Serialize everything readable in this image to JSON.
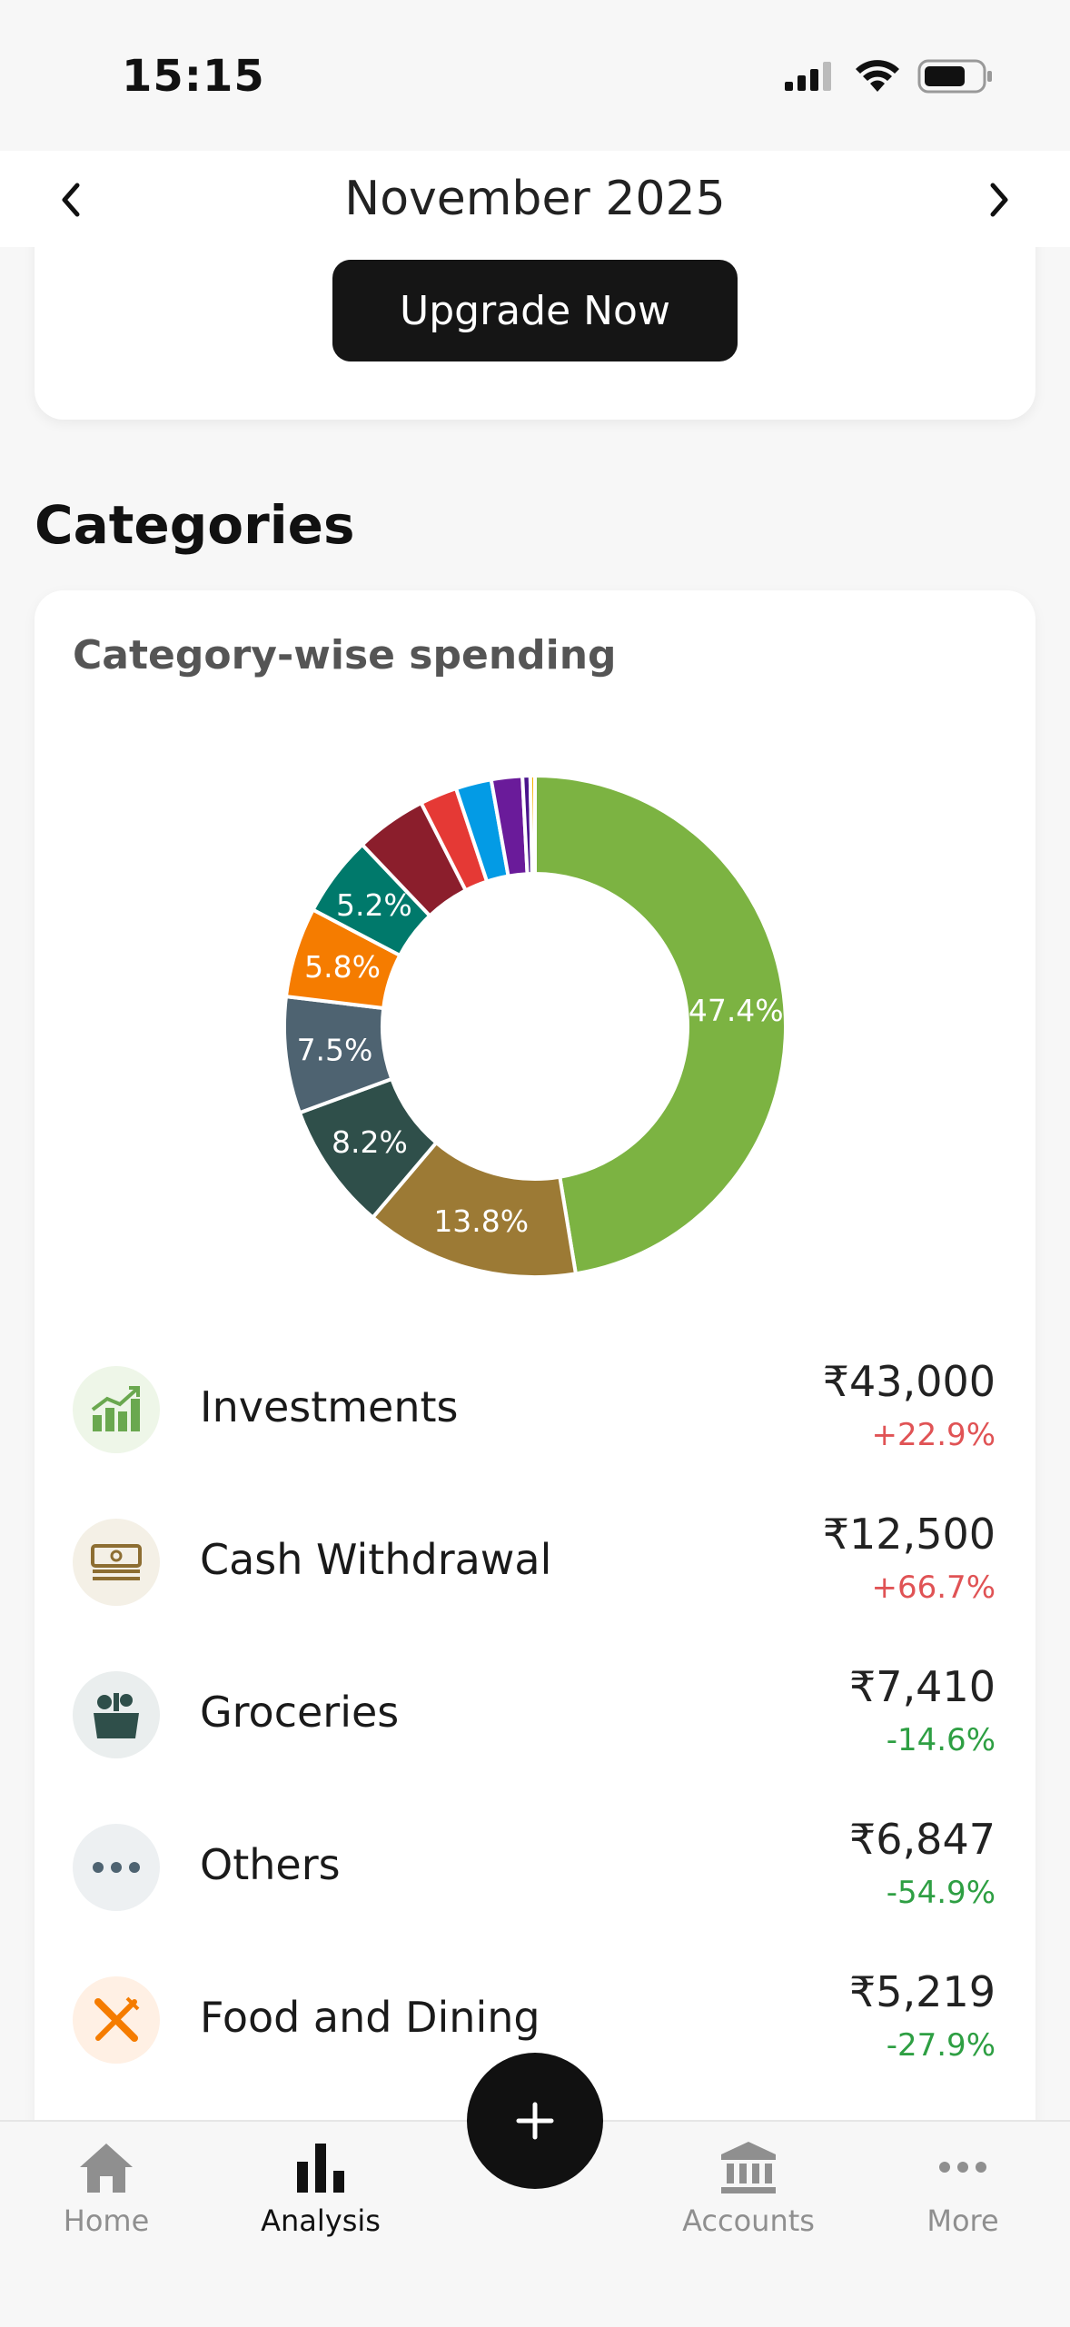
{
  "status_bar": {
    "time": "15:15"
  },
  "header": {
    "month": "November 2025"
  },
  "upgrade": {
    "button_label": "Upgrade Now"
  },
  "section": {
    "title": "Categories"
  },
  "card": {
    "title": "Category-wise spending"
  },
  "chart_data": {
    "type": "pie",
    "style": "donut",
    "slices": [
      {
        "percent": 47.4,
        "label": "47.4%",
        "color": "#7cb342"
      },
      {
        "percent": 13.8,
        "label": "13.8%",
        "color": "#9c7a35"
      },
      {
        "percent": 8.2,
        "label": "8.2%",
        "color": "#2f4f4a"
      },
      {
        "percent": 7.5,
        "label": "7.5%",
        "color": "#4e6371"
      },
      {
        "percent": 5.8,
        "label": "5.8%",
        "color": "#f57c00"
      },
      {
        "percent": 5.2,
        "label": "5.2%",
        "color": "#00796b"
      },
      {
        "percent": 4.6,
        "label": "",
        "color": "#8b1e2c"
      },
      {
        "percent": 2.4,
        "label": "",
        "color": "#e53935"
      },
      {
        "percent": 2.3,
        "label": "",
        "color": "#039be5"
      },
      {
        "percent": 2.0,
        "label": "",
        "color": "#6a1b9a"
      },
      {
        "percent": 0.5,
        "label": "",
        "color": "#4a148c"
      },
      {
        "percent": 0.3,
        "label": "",
        "color": "#f5b400"
      }
    ]
  },
  "categories": [
    {
      "name": "Investments",
      "amount": "₹43,000",
      "change": "+22.9%",
      "trend": "up",
      "icon": "investments-chart-icon",
      "icon_bg": "#eef6e8"
    },
    {
      "name": "Cash Withdrawal",
      "amount": "₹12,500",
      "change": "+66.7%",
      "trend": "up",
      "icon": "cash-icon",
      "icon_bg": "#f4f0e6"
    },
    {
      "name": "Groceries",
      "amount": "₹7,410",
      "change": "-14.6%",
      "trend": "down",
      "icon": "grocery-basket-icon",
      "icon_bg": "#eaeeee"
    },
    {
      "name": "Others",
      "amount": "₹6,847",
      "change": "-54.9%",
      "trend": "down",
      "icon": "more-dots-icon",
      "icon_bg": "#edf0f2"
    },
    {
      "name": "Food and Dining",
      "amount": "₹5,219",
      "change": "-27.9%",
      "trend": "down",
      "icon": "fork-knife-icon",
      "icon_bg": "#fff0e4"
    }
  ],
  "bottom_nav": {
    "home": "Home",
    "analysis": "Analysis",
    "accounts": "Accounts",
    "more": "More"
  }
}
